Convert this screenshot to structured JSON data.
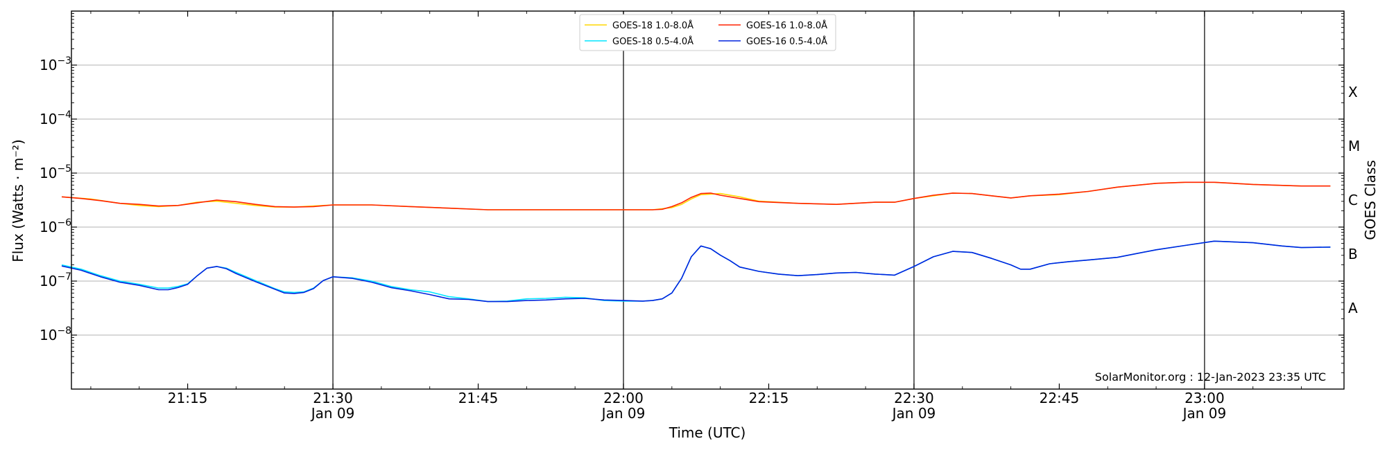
{
  "chart_data": {
    "type": "line",
    "xlabel": "Time (UTC)",
    "ylabel": "Flux (Watts · m⁻²)",
    "ylabel_right": "GOES Class",
    "credit": "SolarMonitor.org : 12-Jan-2023 23:35 UTC",
    "x_range_min": [
      21.04,
      23.23
    ],
    "y_range_log10": [
      -9,
      -2
    ],
    "y_scale": "log",
    "grid": "horizontal",
    "legend_position": "top-center",
    "x_ticks": [
      {
        "t": 21.25,
        "label": "21:15",
        "sub": ""
      },
      {
        "t": 21.5,
        "label": "21:30",
        "sub": "Jan 09"
      },
      {
        "t": 21.75,
        "label": "21:45",
        "sub": ""
      },
      {
        "t": 22.0,
        "label": "22:00",
        "sub": "Jan 09"
      },
      {
        "t": 22.25,
        "label": "22:15",
        "sub": ""
      },
      {
        "t": 22.5,
        "label": "22:30",
        "sub": "Jan 09"
      },
      {
        "t": 22.75,
        "label": "22:45",
        "sub": ""
      },
      {
        "t": 23.0,
        "label": "23:00",
        "sub": "Jan 09"
      }
    ],
    "vlines_t": [
      21.5,
      22.0,
      22.5,
      23.0
    ],
    "y_ticks": [
      {
        "exp": -3,
        "label": "10",
        "sup": "−3"
      },
      {
        "exp": -4,
        "label": "10",
        "sup": "−4"
      },
      {
        "exp": -5,
        "label": "10",
        "sup": "−5"
      },
      {
        "exp": -6,
        "label": "10",
        "sup": "−6"
      },
      {
        "exp": -7,
        "label": "10",
        "sup": "−7"
      },
      {
        "exp": -8,
        "label": "10",
        "sup": "−8"
      }
    ],
    "goes_classes": [
      {
        "label": "X",
        "center_exp": -3.5
      },
      {
        "label": "M",
        "center_exp": -4.5
      },
      {
        "label": "C",
        "center_exp": -5.5
      },
      {
        "label": "B",
        "center_exp": -6.5
      },
      {
        "label": "A",
        "center_exp": -7.5
      }
    ],
    "legend": [
      {
        "name": "GOES-18 1.0-8.0Å",
        "color": "#ffd700",
        "col": 0,
        "row": 0
      },
      {
        "name": "GOES-18 0.5-4.0Å",
        "color": "#00e5ff",
        "col": 0,
        "row": 1
      },
      {
        "name": "GOES-16 1.0-8.0Å",
        "color": "#ff2200",
        "col": 1,
        "row": 0
      },
      {
        "name": "GOES-16 0.5-4.0Å",
        "color": "#0022dd",
        "col": 1,
        "row": 1
      }
    ],
    "series": [
      {
        "name": "GOES-18 1.0-8.0Å",
        "color": "#ffd700",
        "x_time": [
          "21:02",
          "21:05",
          "21:08",
          "21:10",
          "21:12",
          "21:14",
          "21:16",
          "21:18",
          "21:20",
          "21:22",
          "21:24",
          "21:26",
          "21:28",
          "21:30",
          "21:34",
          "21:38",
          "21:42",
          "21:46",
          "21:50",
          "21:54",
          "21:58",
          "22:00",
          "22:03",
          "22:05",
          "22:06",
          "22:07",
          "22:08",
          "22:10",
          "22:12",
          "22:14",
          "22:18",
          "22:22",
          "22:26",
          "22:28",
          "22:30",
          "22:32",
          "22:34",
          "22:36",
          "22:38",
          "22:40",
          "22:42",
          "22:45",
          "22:48",
          "22:51",
          "22:55",
          "22:58",
          "23:01",
          "23:05",
          "23:10",
          "23:13"
        ],
        "y_log10": [
          -5.44,
          -5.48,
          -5.56,
          -5.6,
          -5.62,
          -5.6,
          -5.54,
          -5.52,
          -5.56,
          -5.6,
          -5.63,
          -5.63,
          -5.61,
          -5.59,
          -5.59,
          -5.62,
          -5.65,
          -5.68,
          -5.68,
          -5.68,
          -5.68,
          -5.68,
          -5.68,
          -5.64,
          -5.58,
          -5.48,
          -5.4,
          -5.38,
          -5.44,
          -5.52,
          -5.56,
          -5.58,
          -5.54,
          -5.54,
          -5.47,
          -5.42,
          -5.37,
          -5.38,
          -5.42,
          -5.46,
          -5.42,
          -5.4,
          -5.34,
          -5.26,
          -5.19,
          -5.17,
          -5.17,
          -5.21,
          -5.24,
          -5.24
        ]
      },
      {
        "name": "GOES-18 0.5-4.0Å",
        "color": "#00e5ff",
        "x_time": [
          "21:02",
          "21:04",
          "21:06",
          "21:08",
          "21:10",
          "21:12",
          "21:13",
          "21:14",
          "21:15",
          "21:16",
          "21:17",
          "21:18",
          "21:19",
          "21:20",
          "21:22",
          "21:24",
          "21:25",
          "21:26",
          "21:27",
          "21:28",
          "21:29",
          "21:30",
          "21:32",
          "21:34",
          "21:36",
          "21:38",
          "21:40",
          "21:42",
          "21:44",
          "21:46",
          "21:48",
          "21:50",
          "21:52",
          "21:54",
          "21:56",
          "21:58",
          "22:00",
          "22:02",
          "22:03",
          "22:04",
          "22:05",
          "22:06",
          "22:07",
          "22:08",
          "22:09",
          "22:10",
          "22:11",
          "22:12",
          "22:14",
          "22:16",
          "22:18",
          "22:20",
          "22:22",
          "22:24",
          "22:26",
          "22:28",
          "22:30",
          "22:32",
          "22:34",
          "22:36",
          "22:38",
          "22:40",
          "22:41",
          "22:42",
          "22:44",
          "22:46",
          "22:48",
          "22:51",
          "22:55",
          "22:58",
          "23:01",
          "23:05",
          "23:08",
          "23:10",
          "23:13"
        ],
        "y_log10": [
          -6.7,
          -6.78,
          -6.9,
          -7.0,
          -7.06,
          -7.13,
          -7.13,
          -7.1,
          -7.05,
          -6.9,
          -6.76,
          -6.73,
          -6.76,
          -6.84,
          -6.99,
          -7.14,
          -7.2,
          -7.21,
          -7.2,
          -7.13,
          -6.99,
          -6.92,
          -6.94,
          -7.0,
          -7.1,
          -7.16,
          -7.2,
          -7.29,
          -7.33,
          -7.38,
          -7.37,
          -7.33,
          -7.32,
          -7.3,
          -7.31,
          -7.36,
          -7.37,
          -7.37,
          -7.36,
          -7.33,
          -7.22,
          -6.95,
          -6.55,
          -6.35,
          -6.4,
          -6.52,
          -6.62,
          -6.74,
          -6.82,
          -6.87,
          -6.9,
          -6.88,
          -6.85,
          -6.84,
          -6.87,
          -6.89,
          -6.73,
          -6.55,
          -6.45,
          -6.47,
          -6.58,
          -6.7,
          -6.78,
          -6.78,
          -6.68,
          -6.64,
          -6.61,
          -6.56,
          -6.42,
          -6.34,
          -6.26,
          -6.29,
          -6.35,
          -6.38,
          -6.37
        ]
      },
      {
        "name": "GOES-16 1.0-8.0Å",
        "color": "#ff2200",
        "x_time": [
          "21:02",
          "21:04",
          "21:06",
          "21:08",
          "21:10",
          "21:12",
          "21:14",
          "21:16",
          "21:18",
          "21:20",
          "21:22",
          "21:24",
          "21:26",
          "21:28",
          "21:30",
          "21:34",
          "21:38",
          "21:42",
          "21:46",
          "21:50",
          "21:54",
          "21:58",
          "22:00",
          "22:02",
          "22:03",
          "22:04",
          "22:05",
          "22:06",
          "22:07",
          "22:08",
          "22:09",
          "22:10",
          "22:12",
          "22:14",
          "22:18",
          "22:22",
          "22:26",
          "22:28",
          "22:30",
          "22:32",
          "22:34",
          "22:36",
          "22:38",
          "22:40",
          "22:42",
          "22:45",
          "22:48",
          "22:51",
          "22:55",
          "22:58",
          "23:01",
          "23:05",
          "23:10",
          "23:13"
        ],
        "y_log10": [
          -5.44,
          -5.47,
          -5.51,
          -5.56,
          -5.58,
          -5.61,
          -5.6,
          -5.55,
          -5.5,
          -5.53,
          -5.58,
          -5.62,
          -5.63,
          -5.62,
          -5.59,
          -5.59,
          -5.62,
          -5.65,
          -5.68,
          -5.68,
          -5.68,
          -5.68,
          -5.68,
          -5.68,
          -5.68,
          -5.67,
          -5.62,
          -5.55,
          -5.45,
          -5.38,
          -5.37,
          -5.41,
          -5.47,
          -5.53,
          -5.56,
          -5.58,
          -5.54,
          -5.54,
          -5.47,
          -5.41,
          -5.37,
          -5.38,
          -5.42,
          -5.46,
          -5.42,
          -5.39,
          -5.34,
          -5.26,
          -5.19,
          -5.17,
          -5.17,
          -5.21,
          -5.24,
          -5.24
        ]
      },
      {
        "name": "GOES-16 0.5-4.0Å",
        "color": "#0022dd",
        "x_time": [
          "21:02",
          "21:04",
          "21:06",
          "21:08",
          "21:10",
          "21:12",
          "21:13",
          "21:14",
          "21:15",
          "21:16",
          "21:17",
          "21:18",
          "21:19",
          "21:20",
          "21:22",
          "21:24",
          "21:25",
          "21:26",
          "21:27",
          "21:28",
          "21:29",
          "21:30",
          "21:32",
          "21:34",
          "21:36",
          "21:38",
          "21:40",
          "21:42",
          "21:44",
          "21:46",
          "21:48",
          "21:50",
          "21:52",
          "21:54",
          "21:56",
          "21:58",
          "22:00",
          "22:02",
          "22:03",
          "22:04",
          "22:05",
          "22:06",
          "22:07",
          "22:08",
          "22:09",
          "22:10",
          "22:11",
          "22:12",
          "22:14",
          "22:16",
          "22:18",
          "22:20",
          "22:22",
          "22:24",
          "22:26",
          "22:28",
          "22:30",
          "22:32",
          "22:34",
          "22:36",
          "22:38",
          "22:40",
          "22:41",
          "22:42",
          "22:44",
          "22:46",
          "22:48",
          "22:51",
          "22:55",
          "22:58",
          "23:01",
          "23:05",
          "23:08",
          "23:10",
          "23:13"
        ],
        "y_log10": [
          -6.72,
          -6.8,
          -6.92,
          -7.02,
          -7.08,
          -7.16,
          -7.16,
          -7.12,
          -7.06,
          -6.9,
          -6.76,
          -6.73,
          -6.77,
          -6.86,
          -7.01,
          -7.15,
          -7.22,
          -7.23,
          -7.21,
          -7.14,
          -6.99,
          -6.92,
          -6.95,
          -7.02,
          -7.12,
          -7.18,
          -7.25,
          -7.33,
          -7.34,
          -7.38,
          -7.38,
          -7.36,
          -7.35,
          -7.33,
          -7.32,
          -7.35,
          -7.36,
          -7.37,
          -7.36,
          -7.33,
          -7.22,
          -6.95,
          -6.55,
          -6.35,
          -6.4,
          -6.52,
          -6.62,
          -6.74,
          -6.82,
          -6.87,
          -6.9,
          -6.88,
          -6.85,
          -6.84,
          -6.87,
          -6.89,
          -6.73,
          -6.55,
          -6.45,
          -6.47,
          -6.58,
          -6.7,
          -6.78,
          -6.78,
          -6.68,
          -6.64,
          -6.61,
          -6.56,
          -6.42,
          -6.34,
          -6.26,
          -6.29,
          -6.35,
          -6.38,
          -6.37
        ]
      }
    ]
  }
}
